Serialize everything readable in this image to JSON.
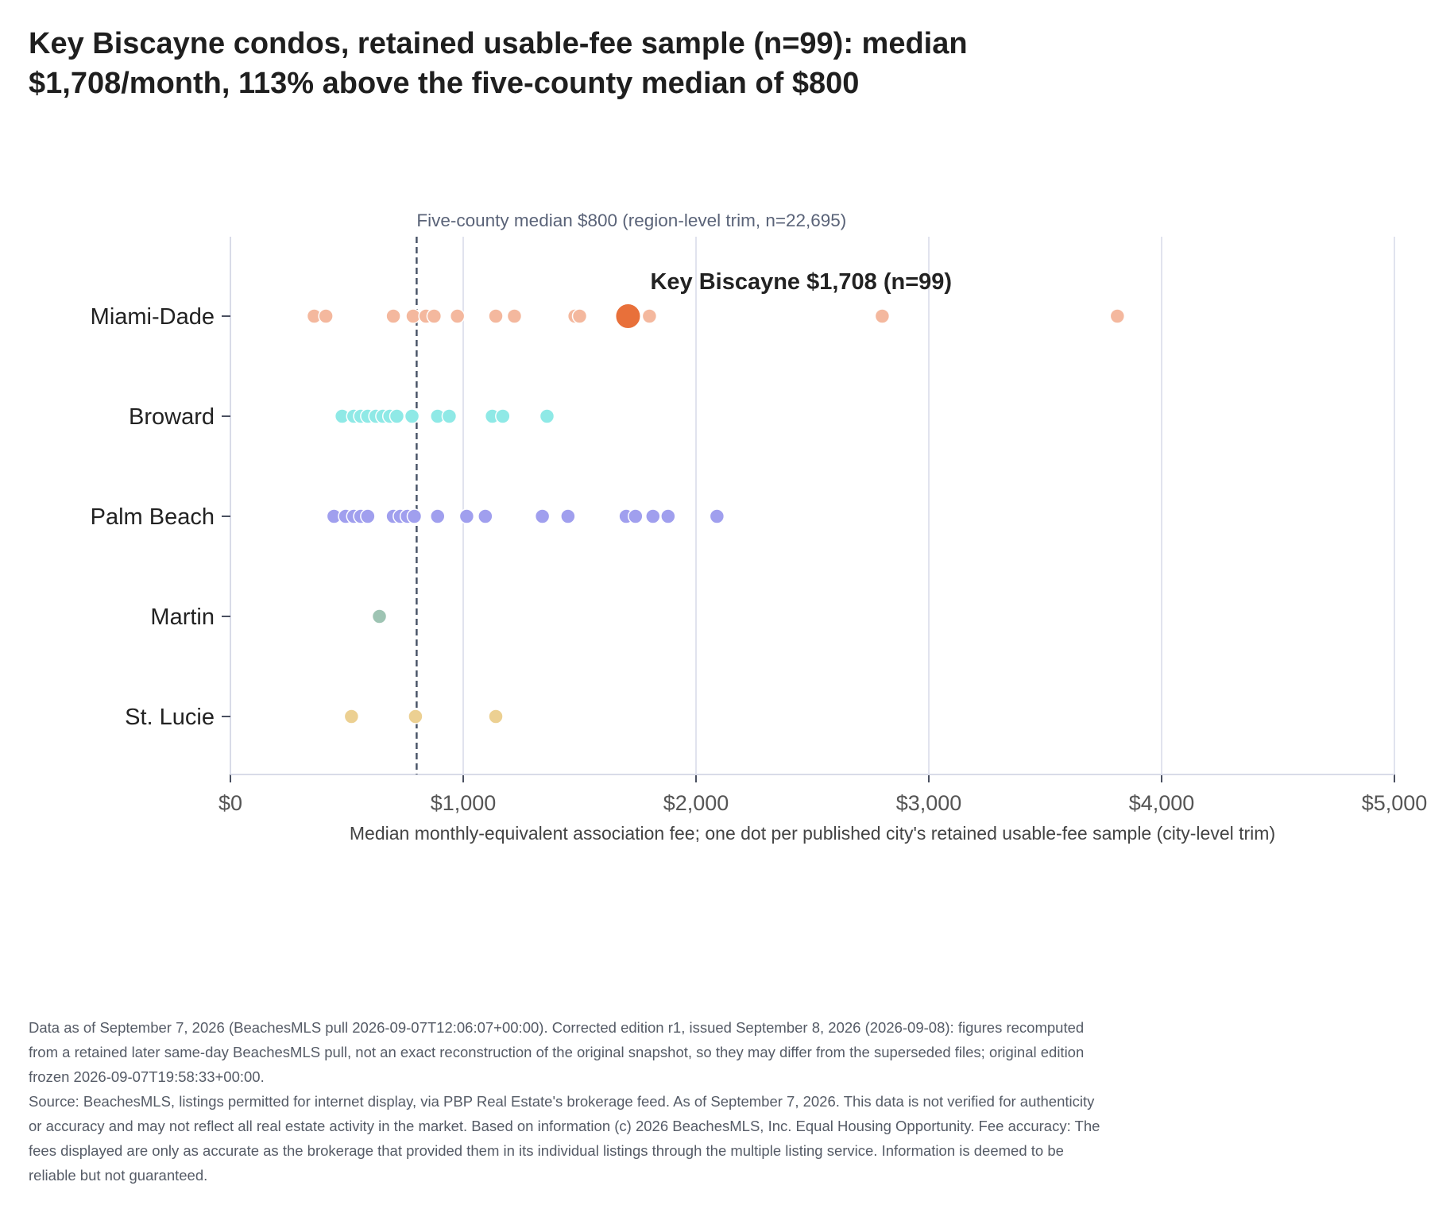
{
  "title_lines": [
    "Key Biscayne condos, retained usable-fee sample (n=99): median",
    "$1,708/month, 113% above the five-county median of $800"
  ],
  "footer_lines": [
    "Data as of September 7, 2026 (BeachesMLS pull 2026-09-07T12:06:07+00:00). Corrected edition r1, issued September 8, 2026 (2026-09-08): figures recomputed from a retained later same-day BeachesMLS pull, not an exact reconstruction of the original snapshot, so they may differ from the superseded files; original edition frozen 2026-09-07T19:58:33+00:00.",
    "Source: BeachesMLS, listings permitted for internet display, via PBP Real Estate's brokerage feed. As of September 7, 2026. This data is not verified for authenticity or accuracy and may not reflect all real estate activity in the market. Based on information (c) 2026 BeachesMLS, Inc. Equal Housing Opportunity. Fee accuracy: The fees displayed are only as accurate as the brokerage that provided them in its individual listings through the multiple listing service. Information is deemed to be reliable but not guaranteed."
  ],
  "chart_data": {
    "type": "scatter",
    "xlabel": "Median monthly-equivalent association fee; one dot per published city's retained usable-fee sample (city-level trim)",
    "xlim": [
      0,
      5000
    ],
    "x_ticks": [
      0,
      1000,
      2000,
      3000,
      4000,
      5000
    ],
    "x_tick_labels": [
      "$0",
      "$1,000",
      "$2,000",
      "$3,000",
      "$4,000",
      "$5,000"
    ],
    "categories": [
      "Miami-Dade",
      "Broward",
      "Palm Beach",
      "Martin",
      "St. Lucie"
    ],
    "grid": true,
    "reference_line": {
      "value": 800,
      "label": "Five-county median $800 (region-level trim, n=22,695)",
      "color": "#4a5568"
    },
    "highlight": {
      "county": "Miami-Dade",
      "value": 1708,
      "label": "Key Biscayne $1,708 (n=99)",
      "color": "#e8703a"
    },
    "series": [
      {
        "county": "Miami-Dade",
        "color": "#f4b89e",
        "values": [
          360,
          410,
          700,
          785,
          840,
          875,
          975,
          1140,
          1220,
          1480,
          1500,
          1800,
          2800,
          3810
        ]
      },
      {
        "county": "Broward",
        "color": "#8fe9e6",
        "values": [
          480,
          530,
          560,
          590,
          625,
          655,
          685,
          715,
          780,
          890,
          940,
          1125,
          1170,
          1360
        ]
      },
      {
        "county": "Palm Beach",
        "color": "#a09fee",
        "values": [
          445,
          495,
          530,
          560,
          590,
          700,
          730,
          760,
          790,
          890,
          1015,
          1095,
          1340,
          1450,
          1700,
          1740,
          1815,
          1880,
          2090
        ]
      },
      {
        "county": "Martin",
        "color": "#9ec4b3",
        "values": [
          640
        ]
      },
      {
        "county": "St. Lucie",
        "color": "#ecd092",
        "values": [
          520,
          795,
          1140
        ]
      }
    ]
  }
}
